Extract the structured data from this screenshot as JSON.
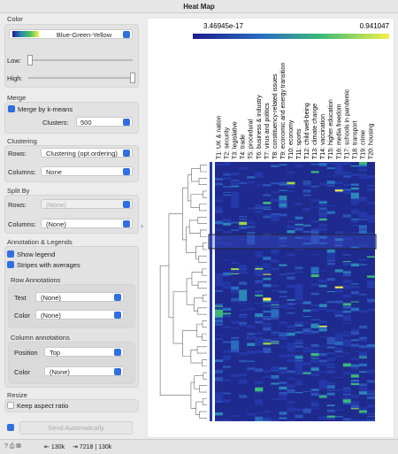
{
  "window": {
    "title": "Heat Map"
  },
  "panel": {
    "color": {
      "heading": "Color",
      "palette": "Blue-Green-Yellow",
      "low": "Low:",
      "high": "High:"
    },
    "merge": {
      "heading": "Merge",
      "checkbox": "Merge by k-means",
      "clusters_label": "Clusters:",
      "clusters": "500"
    },
    "clustering": {
      "heading": "Clustering",
      "rows_label": "Rows:",
      "rows": "Clustering (opt.ordering)",
      "columns_label": "Columns:",
      "columns": "None"
    },
    "split": {
      "heading": "Split By",
      "rows_label": "Rows:",
      "rows": "(None)",
      "columns_label": "Columns:",
      "columns": "(None)"
    },
    "annotation": {
      "heading": "Annotation & Legends",
      "show_legend": "Show legend",
      "stripes": "Stripes with averages",
      "row_heading": "Row Annotations",
      "row_text_label": "Text",
      "row_text": "(None)",
      "row_color_label": "Color",
      "row_color": "(None)",
      "col_heading": "Column annotations",
      "position_label": "Position",
      "position": "Top",
      "col_color_label": "Color",
      "col_color": "(None)"
    },
    "resize": {
      "heading": "Resize",
      "keep_aspect": "Keep aspect ratio"
    },
    "send": "Send Automatically"
  },
  "heatmap": {
    "legend": {
      "min": "3.46945e-17",
      "max": "0.941047"
    },
    "column_labels": [
      "T1: UK & nation",
      "T2: security",
      "T3: legislative",
      "T4: trade",
      "T5: procedural",
      "T6: business & industry",
      "T7: virus and politics",
      "T8: constituency-related issues",
      "T9: economic and energy transition",
      "T10: economy",
      "T11: sports",
      "T12: child well-being",
      "T13: climate change",
      "T14: vaccination",
      "T15: higher education",
      "T16: media freedom",
      "T17: schools in pandemic",
      "T18: transport",
      "T19: crime",
      "T20: housing"
    ]
  },
  "status": {
    "input": "130k",
    "output": "7218 | 130k"
  }
}
